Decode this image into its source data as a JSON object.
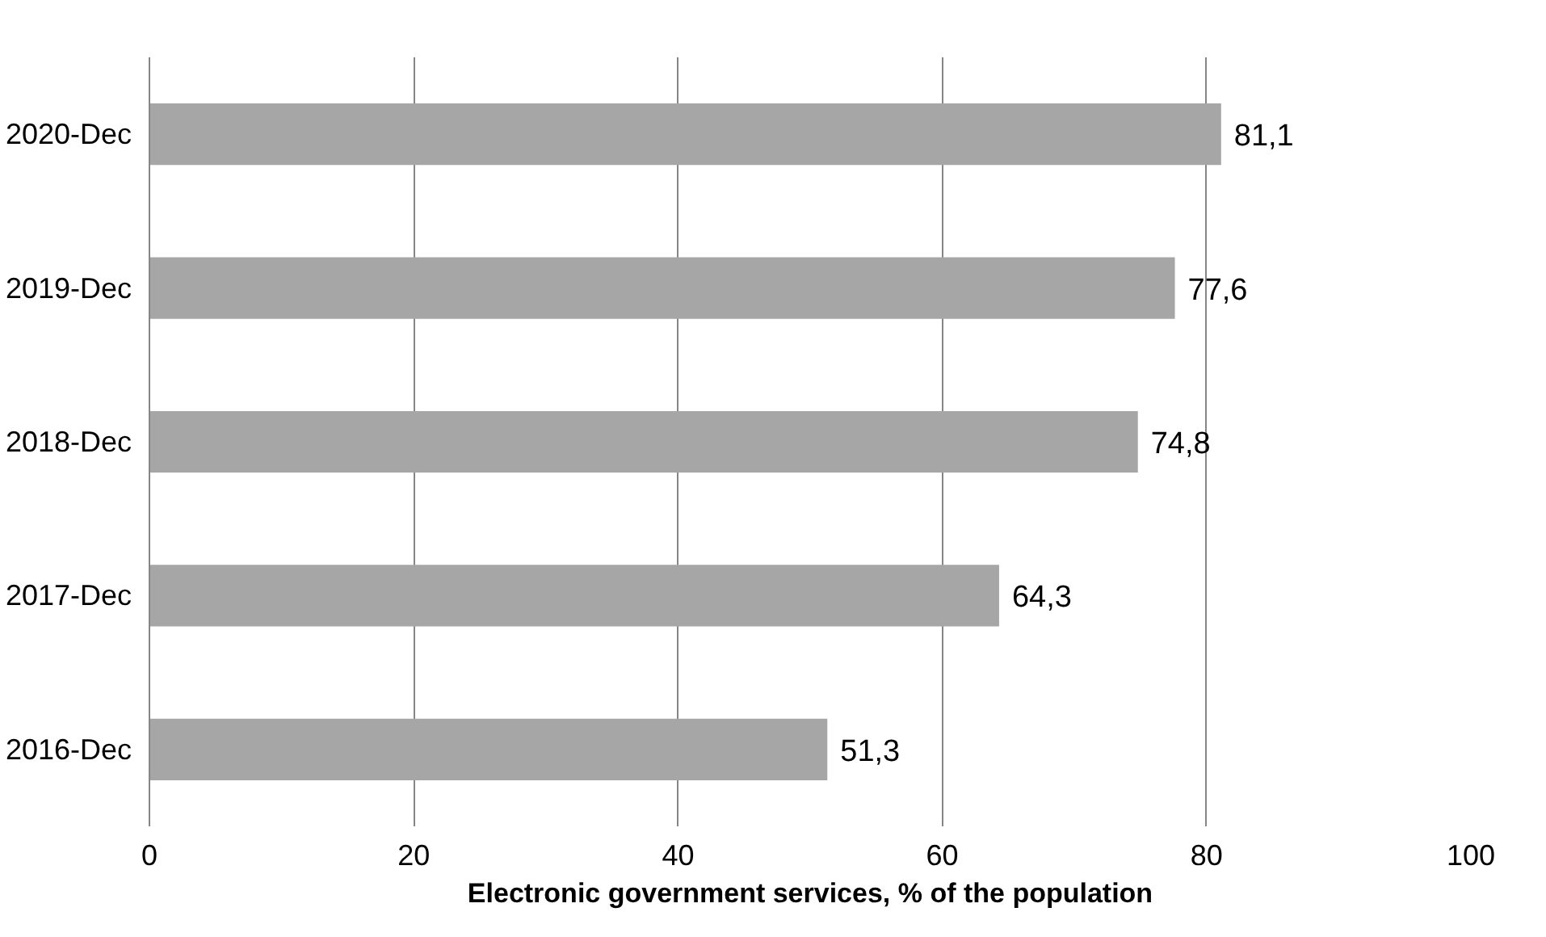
{
  "chart_data": {
    "type": "bar",
    "orientation": "horizontal",
    "xlabel": "Electronic government services, % of the population",
    "categories": [
      "2020-Dec",
      "2019-Dec",
      "2018-Dec",
      "2017-Dec",
      "2016-Dec"
    ],
    "values": [
      81.1,
      77.6,
      74.8,
      64.3,
      51.3
    ],
    "value_labels": [
      "81,1",
      "77,6",
      "74,8",
      "64,3",
      "51,3"
    ],
    "color": "#a6a6a6",
    "xlim": [
      0,
      100
    ],
    "xticks": [
      0,
      20,
      40,
      60,
      80,
      100
    ],
    "grid": "x"
  }
}
